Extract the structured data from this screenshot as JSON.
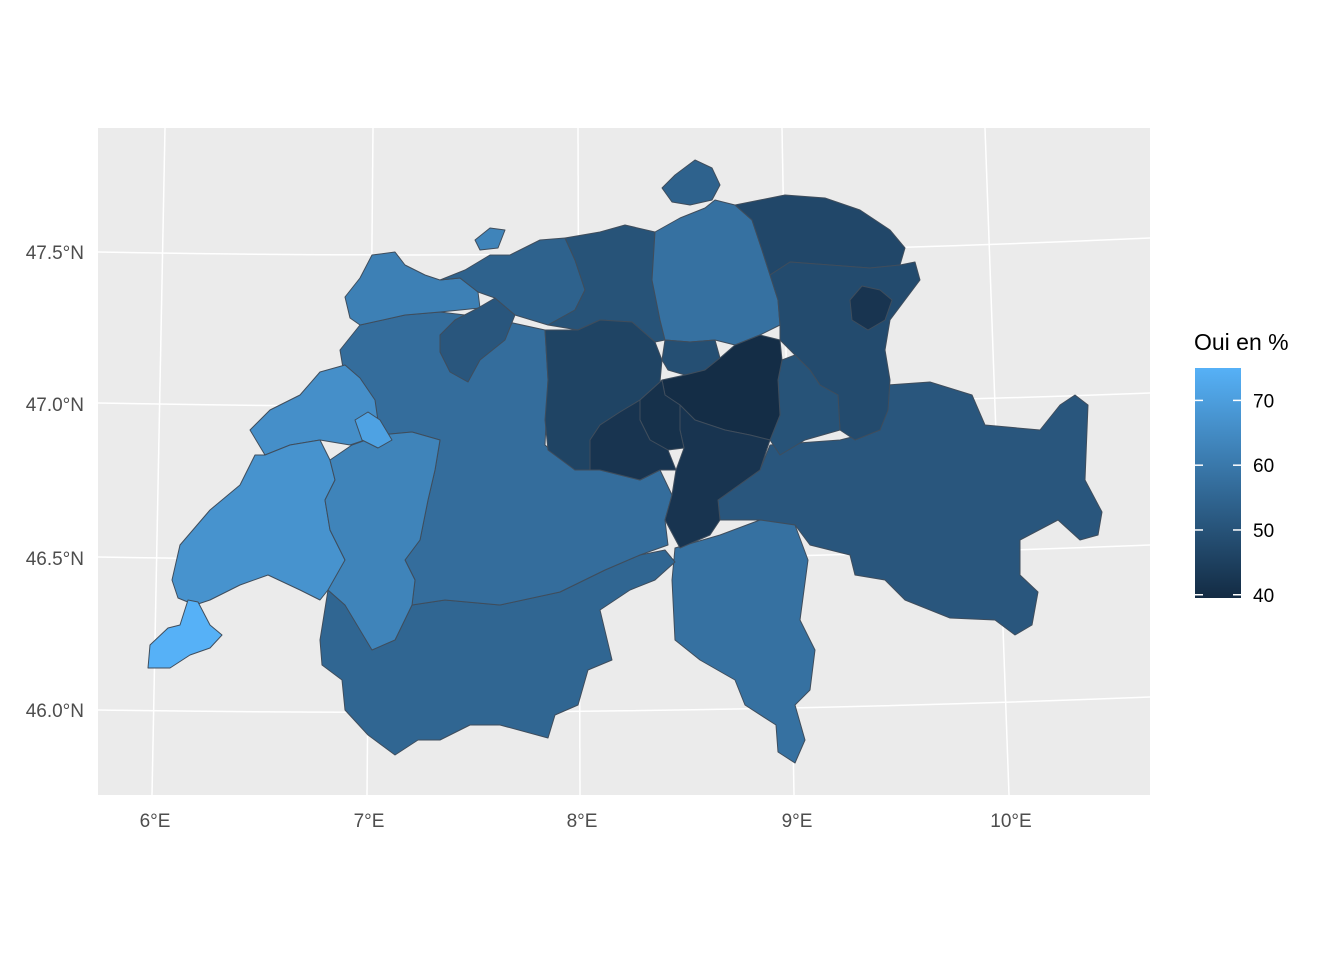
{
  "map": {
    "x_axis_labels": [
      "6°E",
      "7°E",
      "8°E",
      "9°E",
      "10°E"
    ],
    "y_axis_labels": [
      "46.0°N",
      "46.5°N",
      "47.0°N",
      "47.5°N"
    ],
    "colors": {
      "panel_bg": "#ebebeb",
      "grid": "#ffffff",
      "low": "#132b43",
      "high": "#56b1f7",
      "border": "#3f4d5c"
    }
  },
  "legend": {
    "title": "Oui en %",
    "min": 39.5,
    "max": 75,
    "breaks": [
      "40",
      "50",
      "60",
      "70"
    ]
  },
  "chart_data": {
    "type": "choropleth",
    "title": "",
    "xlabel": "",
    "ylabel": "",
    "xlim": [
      5.75,
      10.65
    ],
    "ylim": [
      45.75,
      47.95
    ],
    "grid": true,
    "legend_position": "right",
    "variable": "Oui en %",
    "regions": [
      {
        "id": "geneve",
        "value": 75
      },
      {
        "id": "vaud",
        "value": 67
      },
      {
        "id": "neuchatel",
        "value": 66
      },
      {
        "id": "fribourg",
        "value": 63
      },
      {
        "id": "fribourg-lake-enclave",
        "value": 71
      },
      {
        "id": "jura",
        "value": 62
      },
      {
        "id": "bern",
        "value": 57
      },
      {
        "id": "valais",
        "value": 55
      },
      {
        "id": "ticino",
        "value": 58
      },
      {
        "id": "solothurn",
        "value": 51
      },
      {
        "id": "basel-landschaft",
        "value": 54
      },
      {
        "id": "basel-stadt",
        "value": 63
      },
      {
        "id": "aargau",
        "value": 50
      },
      {
        "id": "luzern",
        "value": 46
      },
      {
        "id": "zurich",
        "value": 58
      },
      {
        "id": "schaffhausen",
        "value": 54
      },
      {
        "id": "thurgau",
        "value": 47
      },
      {
        "id": "st-gallen",
        "value": 48
      },
      {
        "id": "appenzell",
        "value": 42
      },
      {
        "id": "glarus",
        "value": 50
      },
      {
        "id": "graubunden",
        "value": 51
      },
      {
        "id": "uri",
        "value": 42
      },
      {
        "id": "schwyz",
        "value": 40
      },
      {
        "id": "zug",
        "value": 49
      },
      {
        "id": "obwalden",
        "value": 42
      },
      {
        "id": "nidwalden",
        "value": 41
      }
    ]
  }
}
